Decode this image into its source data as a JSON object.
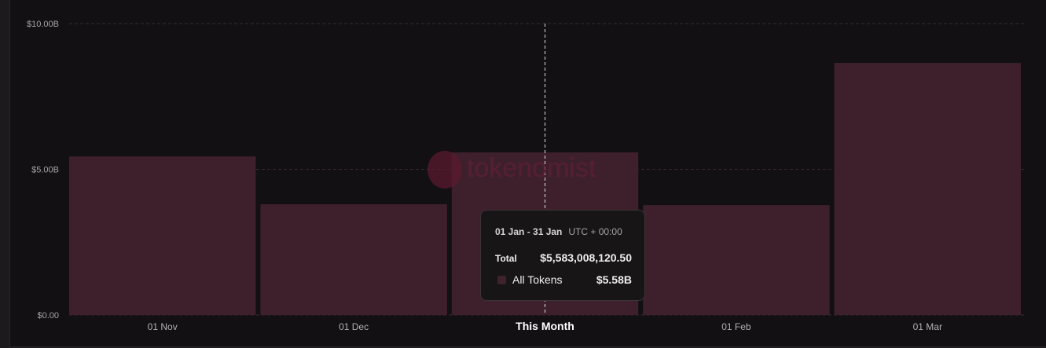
{
  "chart_data": {
    "type": "bar",
    "categories": [
      "01 Nov",
      "01 Dec",
      "This Month",
      "01 Feb",
      "01 Mar"
    ],
    "series": [
      {
        "name": "All Tokens",
        "values": [
          5.44,
          3.8,
          5.58,
          3.77,
          8.65
        ]
      }
    ],
    "unit": "billion USD",
    "ylim": [
      0,
      10
    ],
    "yticks": [
      "$0.00",
      "$5.00B",
      "$10.00B"
    ],
    "grid": true,
    "bar_color": "#3e202d",
    "highlight_index": 2
  },
  "tooltip": {
    "range": "01 Jan - 31 Jan",
    "timezone": "UTC + 00:00",
    "total_label": "Total",
    "total_value": "$5,583,008,120.50",
    "series_label": "All Tokens",
    "series_value": "$5.58B"
  },
  "watermark": "tokenomist"
}
